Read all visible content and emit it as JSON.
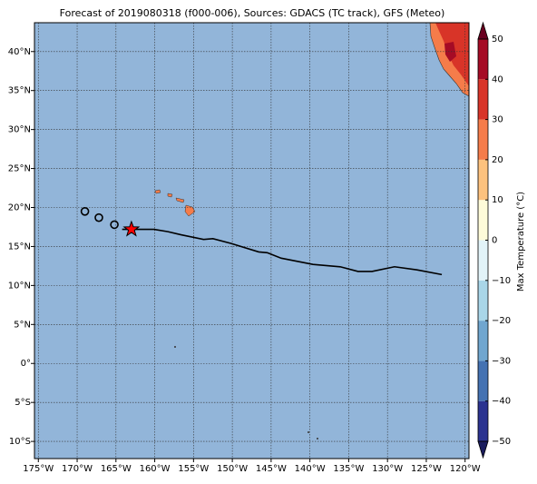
{
  "chart_data": {
    "type": "map",
    "title": "Forecast of 2019080318 (f000-006), Sources: GDACS (TC track), GFS (Meteo)",
    "xlim": [
      -175.5,
      -119.5
    ],
    "ylim": [
      -12.2,
      43.7
    ],
    "xticks": [
      {
        "value": -175,
        "label": "175°W"
      },
      {
        "value": -170,
        "label": "170°W"
      },
      {
        "value": -165,
        "label": "165°W"
      },
      {
        "value": -160,
        "label": "160°W"
      },
      {
        "value": -155,
        "label": "155°W"
      },
      {
        "value": -150,
        "label": "150°W"
      },
      {
        "value": -145,
        "label": "145°W"
      },
      {
        "value": -140,
        "label": "140°W"
      },
      {
        "value": -135,
        "label": "135°W"
      },
      {
        "value": -130,
        "label": "130°W"
      },
      {
        "value": -125,
        "label": "125°W"
      },
      {
        "value": -120,
        "label": "120°W"
      }
    ],
    "yticks": [
      {
        "value": 40,
        "label": "40°N"
      },
      {
        "value": 35,
        "label": "35°N"
      },
      {
        "value": 30,
        "label": "30°N"
      },
      {
        "value": 25,
        "label": "25°N"
      },
      {
        "value": 20,
        "label": "20°N"
      },
      {
        "value": 15,
        "label": "15°N"
      },
      {
        "value": 10,
        "label": "10°N"
      },
      {
        "value": 5,
        "label": "5°N"
      },
      {
        "value": 0,
        "label": "0°"
      },
      {
        "value": -5,
        "label": "5°S"
      },
      {
        "value": -10,
        "label": "10°S"
      }
    ],
    "grid": true,
    "ocean_color": "#92b5d9",
    "track": {
      "color": "#000000",
      "x": [
        -164.2,
        -160.1,
        -158.3,
        -156.6,
        -153.7,
        -152.5,
        -150.2,
        -146.6,
        -145.5,
        -143.7,
        -139.6,
        -136.1,
        -133.8,
        -132.0,
        -129.1,
        -126.2,
        -123.0
      ],
      "y": [
        17.2,
        17.2,
        16.9,
        16.5,
        15.9,
        16.0,
        15.4,
        14.3,
        14.2,
        13.5,
        12.7,
        12.4,
        11.8,
        11.8,
        12.4,
        12.0,
        11.4
      ]
    },
    "position": {
      "x": -163.0,
      "y": 17.2,
      "color": "#ff0000"
    },
    "forecast_points": {
      "x": [
        -169.0,
        -167.2,
        -165.2
      ],
      "y": [
        19.5,
        18.7,
        17.8
      ]
    },
    "colorbar": {
      "label": "Max Temperature (°C)",
      "lim": [
        -50,
        50
      ],
      "ticks": [
        {
          "value": -50,
          "label": "−50"
        },
        {
          "value": -40,
          "label": "−40"
        },
        {
          "value": -30,
          "label": "−30"
        },
        {
          "value": -20,
          "label": "−20"
        },
        {
          "value": -10,
          "label": "−10"
        },
        0,
        10,
        20,
        30,
        40,
        50
      ],
      "colors": [
        "#2b3390",
        "#4472b2",
        "#70a6cf",
        "#a9d6e8",
        "#e2f3f8",
        "#fefbd9",
        "#fdc27e",
        "#f57c4a",
        "#d83428",
        "#a50b25"
      ],
      "extend_colors": [
        "#1a1c5e",
        "#6a0020"
      ]
    }
  }
}
